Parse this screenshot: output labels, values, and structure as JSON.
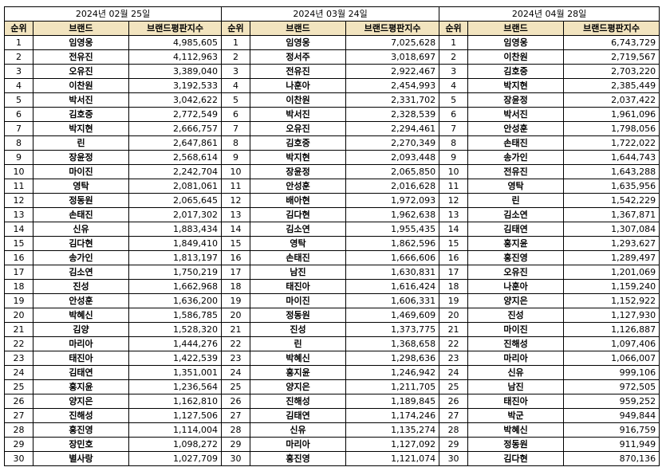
{
  "columns": {
    "rank": "순위",
    "brand": "브랜드",
    "index": "브랜드평판지수"
  },
  "tables": [
    {
      "date": "2024년 02월 25일",
      "rows": [
        {
          "rank": "1",
          "brand": "임영웅",
          "index": "4,985,605"
        },
        {
          "rank": "2",
          "brand": "전유진",
          "index": "4,112,963"
        },
        {
          "rank": "3",
          "brand": "오유진",
          "index": "3,389,040"
        },
        {
          "rank": "4",
          "brand": "이찬원",
          "index": "3,192,533"
        },
        {
          "rank": "5",
          "brand": "박서진",
          "index": "3,042,622"
        },
        {
          "rank": "6",
          "brand": "김호중",
          "index": "2,772,549"
        },
        {
          "rank": "7",
          "brand": "박지현",
          "index": "2,666,757"
        },
        {
          "rank": "8",
          "brand": "린",
          "index": "2,647,861"
        },
        {
          "rank": "9",
          "brand": "장윤정",
          "index": "2,568,614"
        },
        {
          "rank": "10",
          "brand": "마이진",
          "index": "2,242,704"
        },
        {
          "rank": "11",
          "brand": "영탁",
          "index": "2,081,061"
        },
        {
          "rank": "12",
          "brand": "정동원",
          "index": "2,065,645"
        },
        {
          "rank": "13",
          "brand": "손태진",
          "index": "2,017,302"
        },
        {
          "rank": "14",
          "brand": "신유",
          "index": "1,883,434"
        },
        {
          "rank": "15",
          "brand": "김다현",
          "index": "1,849,410"
        },
        {
          "rank": "16",
          "brand": "송가인",
          "index": "1,813,197"
        },
        {
          "rank": "17",
          "brand": "김소연",
          "index": "1,750,219"
        },
        {
          "rank": "18",
          "brand": "진성",
          "index": "1,662,968"
        },
        {
          "rank": "19",
          "brand": "안성훈",
          "index": "1,636,200"
        },
        {
          "rank": "20",
          "brand": "박혜신",
          "index": "1,586,785"
        },
        {
          "rank": "21",
          "brand": "김양",
          "index": "1,528,320"
        },
        {
          "rank": "22",
          "brand": "마리아",
          "index": "1,444,276"
        },
        {
          "rank": "23",
          "brand": "태진아",
          "index": "1,422,539"
        },
        {
          "rank": "24",
          "brand": "김태연",
          "index": "1,351,001"
        },
        {
          "rank": "25",
          "brand": "홍지윤",
          "index": "1,236,564"
        },
        {
          "rank": "26",
          "brand": "양지은",
          "index": "1,162,810"
        },
        {
          "rank": "27",
          "brand": "진해성",
          "index": "1,127,506"
        },
        {
          "rank": "28",
          "brand": "홍진영",
          "index": "1,114,004"
        },
        {
          "rank": "29",
          "brand": "장민호",
          "index": "1,098,272"
        },
        {
          "rank": "30",
          "brand": "별사랑",
          "index": "1,027,709"
        }
      ]
    },
    {
      "date": "2024년 03월 24일",
      "rows": [
        {
          "rank": "1",
          "brand": "임영웅",
          "index": "7,025,628"
        },
        {
          "rank": "2",
          "brand": "정서주",
          "index": "3,018,697"
        },
        {
          "rank": "3",
          "brand": "전유진",
          "index": "2,922,467"
        },
        {
          "rank": "4",
          "brand": "나훈아",
          "index": "2,454,993"
        },
        {
          "rank": "5",
          "brand": "이찬원",
          "index": "2,331,702"
        },
        {
          "rank": "6",
          "brand": "박서진",
          "index": "2,328,539"
        },
        {
          "rank": "7",
          "brand": "오유진",
          "index": "2,294,461"
        },
        {
          "rank": "8",
          "brand": "김호중",
          "index": "2,270,349"
        },
        {
          "rank": "9",
          "brand": "박지현",
          "index": "2,093,448"
        },
        {
          "rank": "10",
          "brand": "장윤정",
          "index": "2,065,850"
        },
        {
          "rank": "11",
          "brand": "안성훈",
          "index": "2,016,628"
        },
        {
          "rank": "12",
          "brand": "배아현",
          "index": "1,972,093"
        },
        {
          "rank": "13",
          "brand": "김다현",
          "index": "1,962,638"
        },
        {
          "rank": "14",
          "brand": "김소연",
          "index": "1,955,435"
        },
        {
          "rank": "15",
          "brand": "영탁",
          "index": "1,862,596"
        },
        {
          "rank": "16",
          "brand": "손태진",
          "index": "1,666,606"
        },
        {
          "rank": "17",
          "brand": "남진",
          "index": "1,630,831"
        },
        {
          "rank": "18",
          "brand": "태진아",
          "index": "1,616,424"
        },
        {
          "rank": "19",
          "brand": "마이진",
          "index": "1,606,331"
        },
        {
          "rank": "20",
          "brand": "정동원",
          "index": "1,469,609"
        },
        {
          "rank": "21",
          "brand": "진성",
          "index": "1,373,775"
        },
        {
          "rank": "22",
          "brand": "린",
          "index": "1,368,658"
        },
        {
          "rank": "23",
          "brand": "박혜신",
          "index": "1,298,636"
        },
        {
          "rank": "24",
          "brand": "홍지윤",
          "index": "1,246,942"
        },
        {
          "rank": "25",
          "brand": "양지은",
          "index": "1,211,705"
        },
        {
          "rank": "26",
          "brand": "진해성",
          "index": "1,189,845"
        },
        {
          "rank": "27",
          "brand": "김태연",
          "index": "1,174,246"
        },
        {
          "rank": "28",
          "brand": "신유",
          "index": "1,135,274"
        },
        {
          "rank": "29",
          "brand": "마리아",
          "index": "1,127,092"
        },
        {
          "rank": "30",
          "brand": "홍진영",
          "index": "1,121,074"
        }
      ]
    },
    {
      "date": "2024년 04월 28일",
      "rows": [
        {
          "rank": "1",
          "brand": "임영웅",
          "index": "6,743,729"
        },
        {
          "rank": "2",
          "brand": "이찬원",
          "index": "2,719,567"
        },
        {
          "rank": "3",
          "brand": "김호중",
          "index": "2,703,220"
        },
        {
          "rank": "4",
          "brand": "박지현",
          "index": "2,385,449"
        },
        {
          "rank": "5",
          "brand": "장윤정",
          "index": "2,037,422"
        },
        {
          "rank": "6",
          "brand": "박서진",
          "index": "1,961,096"
        },
        {
          "rank": "7",
          "brand": "안성훈",
          "index": "1,798,056"
        },
        {
          "rank": "8",
          "brand": "손태진",
          "index": "1,722,022"
        },
        {
          "rank": "9",
          "brand": "송가인",
          "index": "1,644,743"
        },
        {
          "rank": "10",
          "brand": "전유진",
          "index": "1,643,288"
        },
        {
          "rank": "11",
          "brand": "영탁",
          "index": "1,635,956"
        },
        {
          "rank": "12",
          "brand": "린",
          "index": "1,542,229"
        },
        {
          "rank": "13",
          "brand": "김소연",
          "index": "1,367,871"
        },
        {
          "rank": "14",
          "brand": "김태연",
          "index": "1,307,084"
        },
        {
          "rank": "15",
          "brand": "홍지윤",
          "index": "1,293,627"
        },
        {
          "rank": "16",
          "brand": "홍진영",
          "index": "1,289,497"
        },
        {
          "rank": "17",
          "brand": "오유진",
          "index": "1,201,069"
        },
        {
          "rank": "18",
          "brand": "나훈아",
          "index": "1,159,240"
        },
        {
          "rank": "19",
          "brand": "양지은",
          "index": "1,152,922"
        },
        {
          "rank": "20",
          "brand": "진성",
          "index": "1,127,930"
        },
        {
          "rank": "21",
          "brand": "마이진",
          "index": "1,126,887"
        },
        {
          "rank": "22",
          "brand": "진해성",
          "index": "1,097,406"
        },
        {
          "rank": "23",
          "brand": "마리아",
          "index": "1,066,007"
        },
        {
          "rank": "24",
          "brand": "신유",
          "index": "999,106"
        },
        {
          "rank": "25",
          "brand": "남진",
          "index": "972,505"
        },
        {
          "rank": "26",
          "brand": "태진아",
          "index": "959,252"
        },
        {
          "rank": "27",
          "brand": "박군",
          "index": "949,844"
        },
        {
          "rank": "28",
          "brand": "박혜신",
          "index": "916,759"
        },
        {
          "rank": "29",
          "brand": "정동원",
          "index": "911,949"
        },
        {
          "rank": "30",
          "brand": "김다현",
          "index": "870,136"
        }
      ]
    }
  ],
  "colors": {
    "header_bg": "#f2e4bf",
    "border": "#000000"
  }
}
